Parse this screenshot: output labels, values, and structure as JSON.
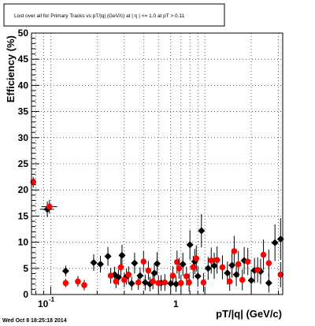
{
  "chart_data": {
    "type": "scatter",
    "title": "Lost over all for Primary Tracks vs pT/|q| (GeV/c) at |  η | <= 1.0 at pT > 0.11",
    "xlabel": "pT/|q| (GeV/c)",
    "ylabel": "Efficiency (%)",
    "x_scale": "log",
    "xlim": [
      0.075,
      3.2
    ],
    "ylim": [
      0,
      50
    ],
    "grid": true,
    "y_ticks": [
      "0",
      "5",
      "10",
      "15",
      "20",
      "25",
      "30",
      "35",
      "40",
      "45",
      "50"
    ],
    "x_ticks": [
      "10^-1",
      "1"
    ],
    "series": [
      {
        "color": "#000000",
        "marker": "diamond",
        "points": [
          {
            "x": 0.095,
            "y": 16.3,
            "ey": 1.5
          },
          {
            "x": 0.125,
            "y": 4.5,
            "ey": 1.0
          },
          {
            "x": 0.19,
            "y": 6.1,
            "ey": 1.6
          },
          {
            "x": 0.21,
            "y": 5.8,
            "ey": 1.6
          },
          {
            "x": 0.235,
            "y": 7.3,
            "ey": 1.8
          },
          {
            "x": 0.26,
            "y": 3.8,
            "ey": 1.5
          },
          {
            "x": 0.275,
            "y": 3.3,
            "ey": 1.5
          },
          {
            "x": 0.29,
            "y": 7.5,
            "ey": 2.0
          },
          {
            "x": 0.31,
            "y": 3.4,
            "ey": 1.5
          },
          {
            "x": 0.335,
            "y": 2.1,
            "ey": 1.3
          },
          {
            "x": 0.35,
            "y": 6.0,
            "ey": 2.0
          },
          {
            "x": 0.38,
            "y": 3.6,
            "ey": 1.6
          },
          {
            "x": 0.41,
            "y": 2.3,
            "ey": 1.5
          },
          {
            "x": 0.44,
            "y": 2.0,
            "ey": 1.4
          },
          {
            "x": 0.47,
            "y": 4.1,
            "ey": 1.8
          },
          {
            "x": 0.49,
            "y": 5.9,
            "ey": 2.2
          },
          {
            "x": 0.52,
            "y": 2.2,
            "ey": 1.5
          },
          {
            "x": 0.6,
            "y": 2.1,
            "ey": 1.5
          },
          {
            "x": 0.65,
            "y": 2.0,
            "ey": 1.5
          },
          {
            "x": 0.72,
            "y": 5.8,
            "ey": 2.2
          },
          {
            "x": 0.8,
            "y": 9.5,
            "ey": 2.8
          },
          {
            "x": 0.86,
            "y": 6.3,
            "ey": 2.4
          },
          {
            "x": 0.9,
            "y": 3.5,
            "ey": 2.0
          },
          {
            "x": 0.95,
            "y": 12.2,
            "ey": 3.2
          },
          {
            "x": 1.05,
            "y": 5.0,
            "ey": 2.2
          },
          {
            "x": 1.15,
            "y": 5.5,
            "ey": 2.5
          },
          {
            "x": 1.4,
            "y": 4.1,
            "ey": 2.2
          },
          {
            "x": 1.5,
            "y": 5.6,
            "ey": 2.4
          },
          {
            "x": 1.6,
            "y": 3.8,
            "ey": 2.2
          },
          {
            "x": 1.8,
            "y": 6.5,
            "ey": 2.6
          },
          {
            "x": 2.0,
            "y": 2.7,
            "ey": 2.0
          },
          {
            "x": 2.1,
            "y": 4.6,
            "ey": 2.4
          },
          {
            "x": 2.3,
            "y": 4.4,
            "ey": 2.4
          },
          {
            "x": 2.6,
            "y": 2.2,
            "ey": 1.8
          },
          {
            "x": 2.85,
            "y": 9.9,
            "ey": 3.5
          },
          {
            "x": 3.1,
            "y": 10.6,
            "ey": 4.0
          }
        ]
      },
      {
        "color": "#ff0000",
        "marker": "circle",
        "points": [
          {
            "x": 0.077,
            "y": 21.5,
            "ey": 1.0
          },
          {
            "x": 0.098,
            "y": 16.8,
            "ey": 1.3
          },
          {
            "x": 0.125,
            "y": 2.2,
            "ey": 0.8
          },
          {
            "x": 0.15,
            "y": 2.5,
            "ey": 1.0
          },
          {
            "x": 0.165,
            "y": 1.8,
            "ey": 1.0
          },
          {
            "x": 0.245,
            "y": 3.6,
            "ey": 1.5
          },
          {
            "x": 0.265,
            "y": 2.5,
            "ey": 1.3
          },
          {
            "x": 0.285,
            "y": 5.2,
            "ey": 1.8
          },
          {
            "x": 0.3,
            "y": 2.8,
            "ey": 1.4
          },
          {
            "x": 0.32,
            "y": 3.8,
            "ey": 1.6
          },
          {
            "x": 0.37,
            "y": 2.3,
            "ey": 1.4
          },
          {
            "x": 0.4,
            "y": 6.3,
            "ey": 2.0
          },
          {
            "x": 0.43,
            "y": 4.6,
            "ey": 1.8
          },
          {
            "x": 0.46,
            "y": 2.5,
            "ey": 1.5
          },
          {
            "x": 0.5,
            "y": 2.2,
            "ey": 1.5
          },
          {
            "x": 0.55,
            "y": 2.3,
            "ey": 1.6
          },
          {
            "x": 0.62,
            "y": 3.6,
            "ey": 1.8
          },
          {
            "x": 0.66,
            "y": 6.2,
            "ey": 2.2
          },
          {
            "x": 0.68,
            "y": 5.0,
            "ey": 2.0
          },
          {
            "x": 0.7,
            "y": 2.2,
            "ey": 1.6
          },
          {
            "x": 0.76,
            "y": 3.5,
            "ey": 1.8
          },
          {
            "x": 0.79,
            "y": 2.3,
            "ey": 1.7
          },
          {
            "x": 0.84,
            "y": 5.2,
            "ey": 2.2
          },
          {
            "x": 0.88,
            "y": 6.9,
            "ey": 2.5
          },
          {
            "x": 0.98,
            "y": 2.3,
            "ey": 1.8
          },
          {
            "x": 1.1,
            "y": 6.5,
            "ey": 2.5
          },
          {
            "x": 1.2,
            "y": 6.6,
            "ey": 2.6
          },
          {
            "x": 1.3,
            "y": 5.2,
            "ey": 2.3
          },
          {
            "x": 1.45,
            "y": 2.5,
            "ey": 1.8
          },
          {
            "x": 1.55,
            "y": 8.3,
            "ey": 2.9
          },
          {
            "x": 1.65,
            "y": 5.8,
            "ey": 2.5
          },
          {
            "x": 1.75,
            "y": 2.8,
            "ey": 2.0
          },
          {
            "x": 1.9,
            "y": 6.3,
            "ey": 2.6
          },
          {
            "x": 2.2,
            "y": 4.7,
            "ey": 2.4
          },
          {
            "x": 2.4,
            "y": 7.6,
            "ey": 2.9
          },
          {
            "x": 2.6,
            "y": 6.0,
            "ey": 2.6
          },
          {
            "x": 3.1,
            "y": 3.8,
            "ey": 2.4
          }
        ]
      }
    ],
    "x_error_points": [
      {
        "x": 0.095,
        "y": 16.3,
        "xlo": 0.085,
        "xhi": 0.105
      },
      {
        "x": 0.098,
        "y": 16.8,
        "xlo": 0.087,
        "xhi": 0.11
      }
    ]
  },
  "footer": {
    "timestamp": "Wed Oct  8 18:25:18 2014"
  },
  "colors": {
    "series_black": "#000000",
    "series_red": "#ff0000",
    "grid": "#000000"
  }
}
